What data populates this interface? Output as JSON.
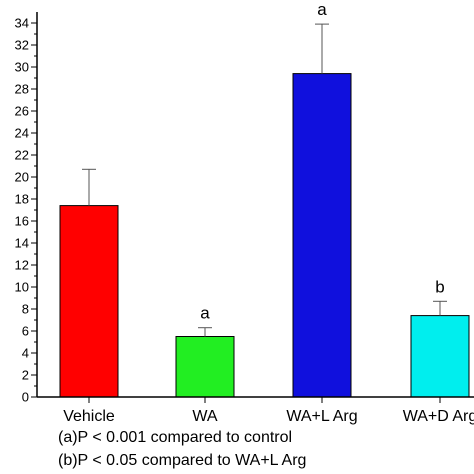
{
  "chart_data": {
    "type": "bar",
    "title": "",
    "xlabel": "",
    "ylabel": "",
    "ylim": [
      0,
      35
    ],
    "yticks": [
      0,
      2,
      4,
      6,
      8,
      10,
      12,
      14,
      16,
      18,
      20,
      22,
      24,
      26,
      28,
      30,
      32,
      34
    ],
    "grid": false,
    "categories": [
      "Vehicle",
      "WA",
      "WA+L Arg",
      "WA+D Arg"
    ],
    "values": [
      17.4,
      5.5,
      29.4,
      7.4
    ],
    "errors": [
      3.3,
      0.8,
      4.5,
      1.3
    ],
    "colors": [
      "#ff0000",
      "#22ee22",
      "#1010dd",
      "#00eeee"
    ],
    "annotations": [
      "",
      "a",
      "a",
      "b"
    ],
    "footnotes": [
      "(a)P < 0.001 compared to control",
      "(b)P < 0.05 compared to WA+L Arg"
    ]
  }
}
